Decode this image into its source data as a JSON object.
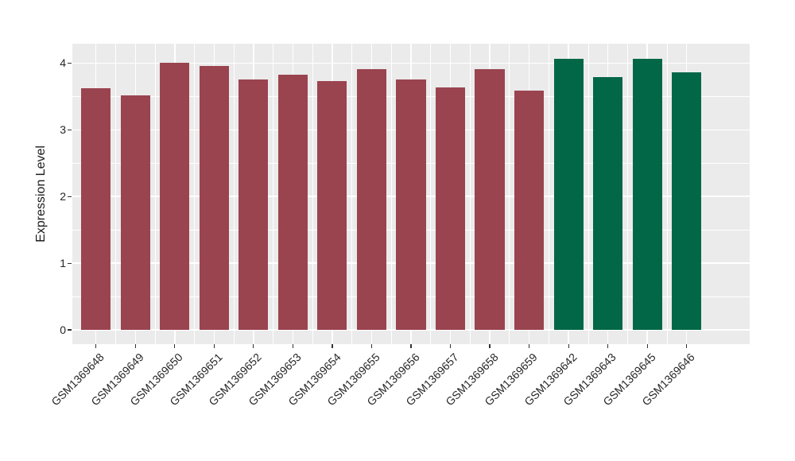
{
  "figure": {
    "background": "#FFFFFF",
    "panel_background": "#EBEBEB",
    "grid_color": "#FFFFFF",
    "tick_mark_color": "#333333",
    "axis_text_color": "#262626",
    "axis_title_color": "#1a1a1a",
    "bar_color_group1": "#9A4450",
    "bar_color_group2": "#016747"
  },
  "chart_data": {
    "type": "bar",
    "title": "",
    "xlabel": "",
    "ylabel": "Expression Level",
    "categories": [
      "GSM1369648",
      "GSM1369649",
      "GSM1369650",
      "GSM1369651",
      "GSM1369652",
      "GSM1369653",
      "GSM1369654",
      "GSM1369655",
      "GSM1369656",
      "GSM1369657",
      "GSM1369658",
      "GSM1369659",
      "GSM1369642",
      "GSM1369643",
      "GSM1369645",
      "GSM1369646"
    ],
    "values": [
      3.62,
      3.52,
      4.01,
      3.96,
      3.75,
      3.83,
      3.73,
      3.91,
      3.76,
      3.63,
      3.91,
      3.59,
      4.07,
      3.79,
      4.06,
      3.86
    ],
    "bar_colors": [
      "#9A4450",
      "#9A4450",
      "#9A4450",
      "#9A4450",
      "#9A4450",
      "#9A4450",
      "#9A4450",
      "#9A4450",
      "#9A4450",
      "#9A4450",
      "#9A4450",
      "#9A4450",
      "#016747",
      "#016747",
      "#016747",
      "#016747"
    ],
    "yticks": [
      0,
      1,
      2,
      3,
      4
    ],
    "minor_yticks": [
      0.5,
      1.5,
      2.5,
      3.5
    ],
    "ylim": [
      -0.22,
      4.28
    ],
    "bar_width_ratio": 0.75,
    "x_label_rotation_deg": 45,
    "grid": true,
    "legend_position": "none"
  }
}
